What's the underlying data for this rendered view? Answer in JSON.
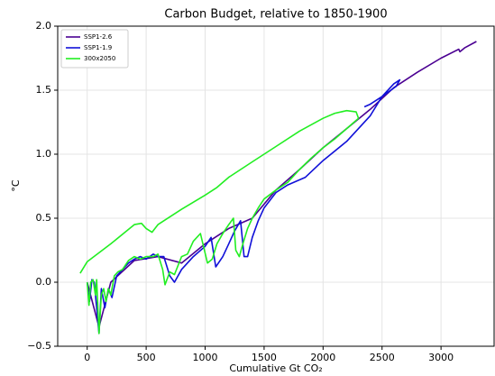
{
  "chart_data": {
    "type": "line",
    "title": "Carbon Budget, relative to 1850-1900",
    "xlabel": "Cumulative Gt CO₂",
    "ylabel": "°C",
    "xlim": [
      -250,
      3450
    ],
    "ylim": [
      -0.5,
      2.0
    ],
    "xticks": [
      0,
      500,
      1000,
      1500,
      2000,
      2500,
      3000
    ],
    "yticks": [
      {
        "value": -0.5,
        "label": "−0.5"
      },
      {
        "value": 0,
        "label": "0.0"
      },
      0.5,
      {
        "value": 1,
        "label": "1.0"
      },
      1.5,
      {
        "value": 2,
        "label": "2.0"
      }
    ],
    "grid": true,
    "legend": "upper left",
    "series": [
      {
        "name": "SSP1-2.6",
        "color": "#4b0092",
        "x": [
          0,
          100,
          200,
          400,
          600,
          800,
          1000,
          1200,
          1400,
          1600,
          1800,
          2000,
          2200,
          2400,
          2600,
          2800,
          3000,
          3150,
          3160,
          3200,
          3300
        ],
        "values": [
          0,
          -0.35,
          0,
          0.17,
          0.2,
          0.15,
          0.3,
          0.42,
          0.5,
          0.72,
          0.88,
          1.05,
          1.2,
          1.35,
          1.52,
          1.64,
          1.75,
          1.82,
          1.8,
          1.83,
          1.88
        ]
      },
      {
        "name": "SSP1-1.9",
        "color": "#1010d8",
        "x": [
          0,
          20,
          40,
          60,
          80,
          100,
          120,
          150,
          180,
          210,
          250,
          300,
          350,
          400,
          450,
          500,
          560,
          600,
          650,
          700,
          740,
          800,
          850,
          900,
          1000,
          1050,
          1090,
          1150,
          1200,
          1250,
          1300,
          1330,
          1360,
          1400,
          1450,
          1500,
          1600,
          1700,
          1850,
          2000,
          2200,
          2400,
          2500,
          2600,
          2650,
          2620,
          2500,
          2400,
          2350
        ],
        "values": [
          0,
          -0.15,
          0.02,
          0.0,
          -0.2,
          -0.4,
          -0.05,
          -0.2,
          -0.05,
          -0.12,
          0.05,
          0.1,
          0.15,
          0.18,
          0.2,
          0.18,
          0.22,
          0.2,
          0.2,
          0.05,
          0.0,
          0.1,
          0.15,
          0.2,
          0.28,
          0.35,
          0.12,
          0.2,
          0.3,
          0.4,
          0.48,
          0.2,
          0.2,
          0.35,
          0.48,
          0.58,
          0.7,
          0.76,
          0.82,
          0.95,
          1.1,
          1.3,
          1.45,
          1.55,
          1.58,
          1.53,
          1.45,
          1.39,
          1.37
        ]
      },
      {
        "name": "300x2050",
        "color": "#22ee22",
        "x": [
          0,
          15,
          30,
          50,
          70,
          80,
          100,
          120,
          140,
          160,
          180,
          200,
          230,
          260,
          300,
          350,
          400,
          450,
          500,
          560,
          600,
          640,
          660,
          700,
          740,
          800,
          850,
          900,
          960,
          1020,
          1060,
          1100,
          1150,
          1200,
          1240,
          1260,
          1290,
          1320,
          1360,
          1400,
          1450,
          1500,
          1600,
          1700,
          1800,
          1900,
          2000,
          2100,
          2200,
          2300,
          2280,
          2200,
          2100,
          2000,
          1800,
          1600,
          1400,
          1200,
          1100,
          1000,
          800,
          600,
          550,
          500,
          460,
          400,
          200,
          0,
          -60
        ],
        "values": [
          0,
          -0.18,
          0,
          0.02,
          -0.1,
          0.02,
          -0.4,
          -0.1,
          -0.05,
          -0.15,
          -0.05,
          -0.1,
          0.05,
          0.08,
          0.1,
          0.17,
          0.2,
          0.18,
          0.2,
          0.2,
          0.22,
          0.1,
          -0.02,
          0.08,
          0.06,
          0.2,
          0.22,
          0.32,
          0.38,
          0.15,
          0.18,
          0.3,
          0.38,
          0.45,
          0.5,
          0.25,
          0.2,
          0.3,
          0.42,
          0.5,
          0.58,
          0.65,
          0.72,
          0.78,
          0.88,
          0.97,
          1.05,
          1.12,
          1.2,
          1.28,
          1.33,
          1.34,
          1.32,
          1.28,
          1.18,
          1.06,
          0.94,
          0.82,
          0.74,
          0.68,
          0.57,
          0.45,
          0.39,
          0.42,
          0.46,
          0.45,
          0.3,
          0.16,
          0.07
        ]
      }
    ]
  }
}
